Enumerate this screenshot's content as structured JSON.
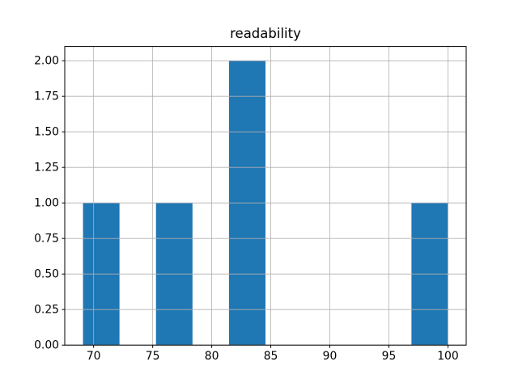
{
  "figure": {
    "title": "readability"
  },
  "chart_data": {
    "type": "bar",
    "subtype": "histogram",
    "title": "readability",
    "xlabel": "",
    "ylabel": "",
    "bin_edges": [
      69.1,
      72.19,
      75.28,
      78.37,
      81.46,
      84.55,
      87.64,
      90.73,
      93.82,
      96.91,
      100.0
    ],
    "counts": [
      1,
      0,
      1,
      0,
      2,
      0,
      0,
      0,
      0,
      1
    ],
    "x_ticks": [
      70,
      75,
      80,
      85,
      90,
      95,
      100
    ],
    "x_tick_labels": [
      "70",
      "75",
      "80",
      "85",
      "90",
      "95",
      "100"
    ],
    "y_ticks": [
      0.0,
      0.25,
      0.5,
      0.75,
      1.0,
      1.25,
      1.5,
      1.75,
      2.0
    ],
    "y_tick_labels": [
      "0.00",
      "0.25",
      "0.50",
      "0.75",
      "1.00",
      "1.25",
      "1.50",
      "1.75",
      "2.00"
    ],
    "xlim": [
      67.555,
      101.545
    ],
    "ylim": [
      0,
      2.1
    ],
    "grid": true,
    "grid_above_bars": true,
    "legend": null,
    "bar_color": "#1f77b4",
    "grid_color": "#b0b0b0",
    "spine_color": "#000000",
    "text_color": "#000000",
    "background": "#ffffff"
  }
}
